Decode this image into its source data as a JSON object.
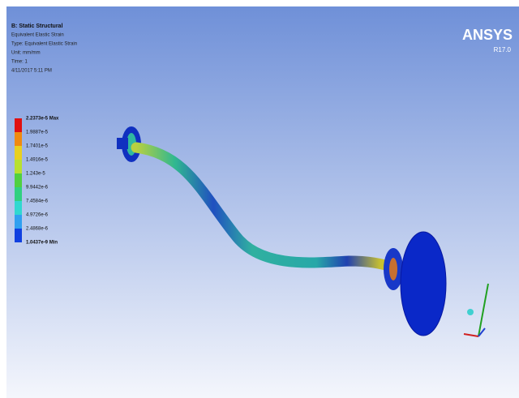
{
  "header": {
    "title": "B: Static Structural",
    "lines": [
      "Equivalent Elastic Strain",
      "Type: Equivalent Elastic Strain",
      "Unit: mm/mm",
      "Time: 1",
      "4/11/2017 5:11 PM"
    ]
  },
  "legend": {
    "labels": [
      "2.2373e-5 Max",
      "1.9887e-5",
      "1.7401e-5",
      "1.4916e-5",
      "1.243e-5",
      "9.9442e-6",
      "7.4584e-6",
      "4.9726e-6",
      "2.4868e-6",
      "1.0437e-9 Min"
    ],
    "colors": [
      "#e01010",
      "#f08a10",
      "#e8d020",
      "#b8e030",
      "#50d040",
      "#30d080",
      "#30d8d0",
      "#30a0f0",
      "#1040e0",
      "#0818b0"
    ]
  },
  "logo": {
    "name": "ANSYS",
    "version": "R17.0"
  }
}
